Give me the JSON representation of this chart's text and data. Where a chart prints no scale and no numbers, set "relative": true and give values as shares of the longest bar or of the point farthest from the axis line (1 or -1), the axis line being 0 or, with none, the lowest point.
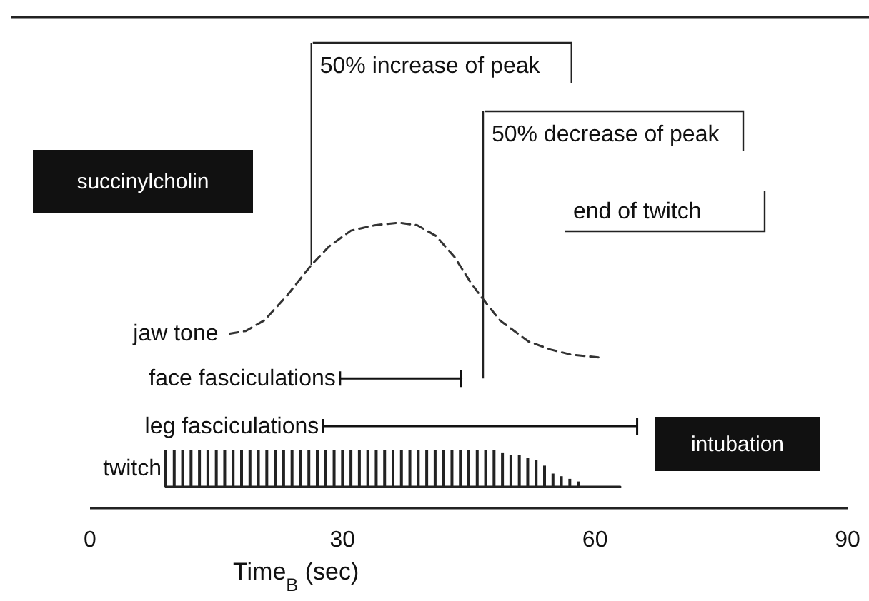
{
  "chart_data": {
    "type": "line",
    "relative": true,
    "xlabel": "Time$_{B}$ (sec)",
    "xlim": [
      0,
      90
    ],
    "xticks": [
      0,
      30,
      60,
      90
    ],
    "grid": false,
    "legend": "left",
    "series": [
      {
        "name": "jaw tone",
        "line_style": "dashed",
        "color": "#333333",
        "x": [
          16.6,
          18.5,
          20.7,
          23.3,
          26.3,
          28.4,
          31.0,
          33.8,
          36.7,
          38.9,
          41.1,
          43.3,
          45.3,
          46.7,
          48.7,
          50.4,
          52.1,
          54.7,
          57.2,
          60.4
        ],
        "values": [
          0.58,
          0.59,
          0.63,
          0.72,
          0.84,
          0.91,
          0.97,
          0.99,
          1.0,
          0.99,
          0.95,
          0.87,
          0.77,
          0.71,
          0.63,
          0.59,
          0.55,
          0.52,
          0.5,
          0.49
        ]
      },
      {
        "name": "face fasciculations",
        "color": "#111111",
        "x": [
          29.7,
          44.1
        ],
        "values": [
          0.41,
          0.41
        ]
      },
      {
        "name": "leg fasciculations",
        "color": "#111111",
        "x": [
          27.7,
          65.0
        ],
        "values": [
          0.23,
          0.23
        ]
      },
      {
        "name": "twitch",
        "type": "bar",
        "color": "#222222",
        "x": [
          9,
          10,
          11,
          12,
          13,
          14,
          15,
          16,
          17,
          18,
          19,
          20,
          21,
          22,
          23,
          24,
          25,
          26,
          27,
          28,
          29,
          30,
          31,
          32,
          33,
          34,
          35,
          36,
          37,
          38,
          39,
          40,
          41,
          42,
          43,
          44,
          45,
          46,
          47,
          48,
          49,
          50,
          51,
          52,
          53,
          54,
          55,
          56,
          57,
          58
        ],
        "values": [
          0.14,
          0.14,
          0.14,
          0.14,
          0.14,
          0.14,
          0.14,
          0.14,
          0.14,
          0.14,
          0.14,
          0.14,
          0.14,
          0.14,
          0.14,
          0.14,
          0.14,
          0.14,
          0.14,
          0.14,
          0.14,
          0.14,
          0.14,
          0.14,
          0.14,
          0.14,
          0.14,
          0.14,
          0.14,
          0.14,
          0.14,
          0.14,
          0.14,
          0.14,
          0.14,
          0.14,
          0.14,
          0.14,
          0.14,
          0.14,
          0.13,
          0.12,
          0.12,
          0.11,
          0.1,
          0.08,
          0.05,
          0.04,
          0.03,
          0.02
        ]
      },
      {
        "color": "#222222",
        "x": [
          9,
          63
        ],
        "values": [
          0,
          0
        ]
      }
    ],
    "ref_lines": [
      {
        "axis": "x",
        "value": 26.3,
        "label": "50% increase of peak",
        "color": "#222222"
      },
      {
        "axis": "x",
        "value": 46.7,
        "label": "50% decrease of peak",
        "color": "#222222"
      }
    ],
    "annotations": [
      "succinylcholin",
      "end of twitch",
      "intubation"
    ]
  }
}
